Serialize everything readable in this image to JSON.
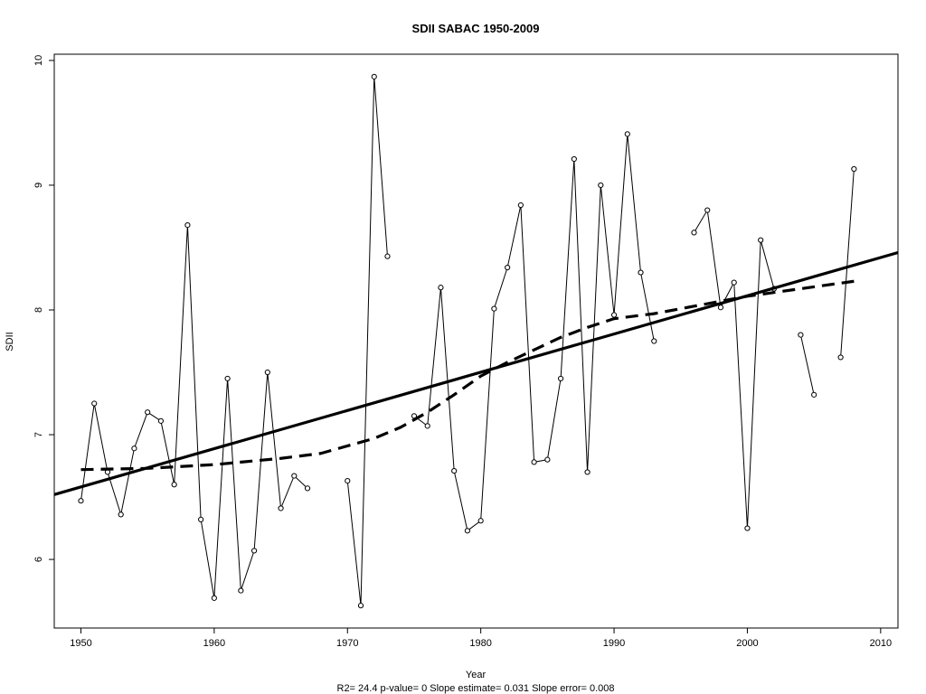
{
  "chart_data": {
    "type": "line",
    "title": "SDII   SABAC 1950-2009",
    "xlabel": "Year",
    "ylabel": "SDII",
    "footer": "R2= 24.4  p-value= 0  Slope estimate= 0.031  Slope error= 0.008",
    "xlim": [
      1948,
      2011.3
    ],
    "ylim": [
      5.45,
      10.05
    ],
    "x_ticks": [
      1950,
      1960,
      1970,
      1980,
      1990,
      2000,
      2010
    ],
    "y_ticks": [
      6,
      7,
      8,
      9,
      10
    ],
    "grid": false,
    "series": [
      {
        "style": "thin-line-with-points",
        "x": [
          1950,
          1951,
          1952,
          1953,
          1954,
          1955,
          1956,
          1957,
          1958,
          1959,
          1960,
          1961,
          1962,
          1963,
          1964,
          1965,
          1966,
          1967,
          1968,
          1969,
          1970,
          1971,
          1972,
          1973,
          1974,
          1975,
          1976,
          1977,
          1978,
          1979,
          1980,
          1981,
          1982,
          1983,
          1984,
          1985,
          1986,
          1987,
          1988,
          1989,
          1990,
          1991,
          1992,
          1993,
          1994,
          1995,
          1996,
          1997,
          1998,
          1999,
          2000,
          2001,
          2002,
          2003,
          2004,
          2005,
          2006,
          2007,
          2008
        ],
        "y": [
          6.47,
          7.25,
          6.7,
          6.36,
          6.89,
          7.18,
          7.11,
          6.6,
          8.68,
          6.32,
          5.69,
          7.45,
          5.75,
          6.07,
          7.5,
          6.41,
          6.67,
          6.57,
          null,
          null,
          6.63,
          5.63,
          9.87,
          8.43,
          null,
          7.15,
          7.07,
          8.18,
          6.71,
          6.23,
          6.31,
          8.01,
          8.34,
          8.84,
          6.78,
          6.8,
          7.45,
          9.21,
          6.7,
          9.0,
          7.96,
          9.41,
          8.3,
          7.75,
          null,
          null,
          8.62,
          8.8,
          8.02,
          8.22,
          6.25,
          8.56,
          8.17,
          null,
          7.8,
          7.32,
          null,
          7.62,
          9.13
        ]
      },
      {
        "style": "thick-dashed-smooth",
        "x": [
          1950,
          1955,
          1960,
          1965,
          1968,
          1970,
          1972,
          1974,
          1976,
          1978,
          1980,
          1982,
          1984,
          1986,
          1988,
          1990,
          1993,
          1996,
          2000,
          2004,
          2008
        ],
        "y": [
          6.72,
          6.73,
          6.76,
          6.81,
          6.85,
          6.91,
          6.97,
          7.06,
          7.18,
          7.32,
          7.47,
          7.58,
          7.68,
          7.78,
          7.86,
          7.93,
          7.97,
          8.03,
          8.11,
          8.17,
          8.23
        ]
      },
      {
        "style": "thick-solid-trend",
        "x": [
          1948,
          2011.3
        ],
        "y": [
          6.52,
          8.46
        ]
      }
    ]
  }
}
